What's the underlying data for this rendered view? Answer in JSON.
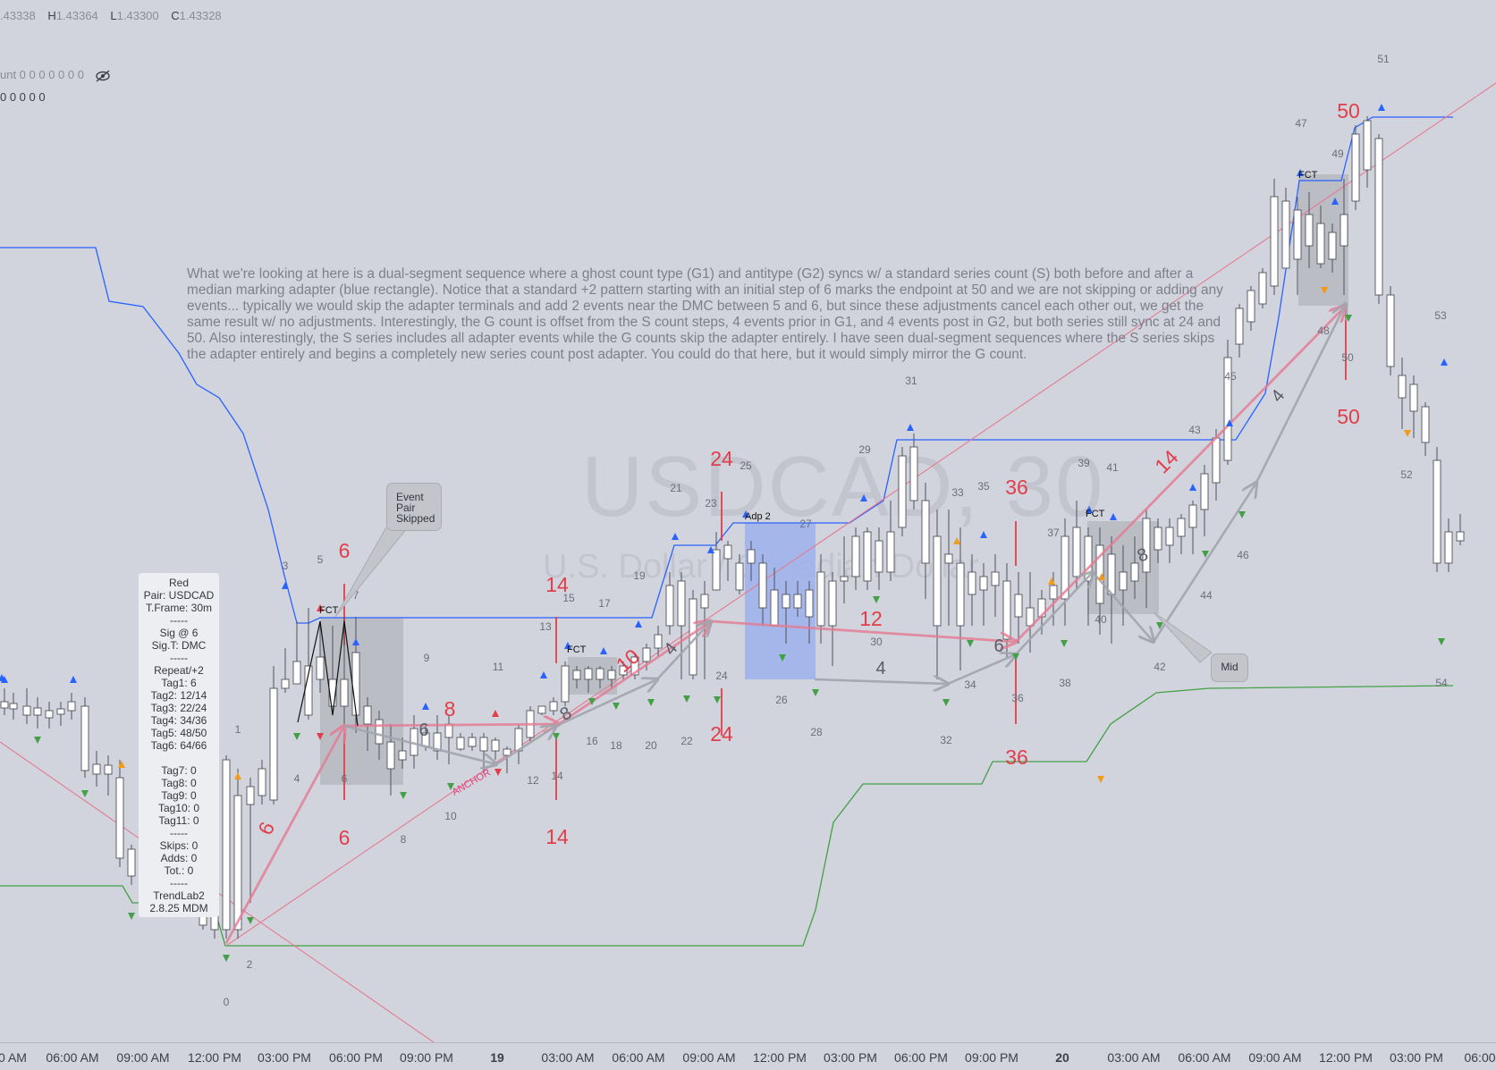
{
  "ohlc": {
    "o_value": ".43338",
    "h_label": "H",
    "h_value": "1.43364",
    "l_label": "L",
    "l_value": "1.43300",
    "c_label": "C",
    "c_value": "1.43328"
  },
  "indicator_1": {
    "label": "unt 0 0 0 0 0 0 0"
  },
  "indicator_2": {
    "label": "0 0 0 0 0"
  },
  "watermark": {
    "symbol": "USDCAD, 30",
    "name": "U.S. Dollar / Canadian Dollar"
  },
  "description": "What we're looking at here is a dual-segment sequence where a ghost count type (G1) and antitype (G2) syncs w/ a standard series count (S) both before and after a median marking adapter (blue rectangle). Notice that a standard +2 pattern starting with an initial step of 6 marks the endpoint at 50 and we are not skipping or adding any events... typically we would skip the adapter terminals and add 2 events near the DMC between 5 and 6, but since these adjustments cancel each other out, we get the same result w/ no adjustments. Interestingly, the G count is offset from the S count steps, 4 events prior in G1, and 4 events post in G2, but both series still sync at 24 and 50. Also interestingly, the S series includes all adapter events while the G counts skip the adapter entirely. I have seen dual-segment sequences where the S series skips the adapter entirely and begins a completely new series count post adapter. You could do that here, but it would simply mirror the G count.",
  "infobox": {
    "lines": [
      "Red",
      "Pair: USDCAD",
      "T.Frame: 30m",
      "-----",
      "Sig @ 6",
      "Sig.T: DMC",
      "-----",
      "Repeat/+2",
      "Tag1: 6",
      "Tag2: 12/14",
      "Tag3: 22/24",
      "Tag4: 34/36",
      "Tag5: 48/50",
      "Tag6: 64/66",
      "",
      "Tag7: 0",
      "Tag8: 0",
      "Tag9: 0",
      "Tag10: 0",
      "Tag11: 0",
      "-----",
      "Skips: 0",
      "Adds: 0",
      "Tot.: 0",
      "-----",
      "TrendLab2",
      "2.8.25 MDM"
    ]
  },
  "callouts": {
    "event_pair": [
      "Event",
      "Pair",
      "Skipped"
    ],
    "mid": "Mid"
  },
  "box_labels": {
    "fct": "FCT",
    "adp": "Adp 2",
    "anchor": "ANCHOR"
  },
  "x_axis": {
    "ticks": [
      "0 AM",
      "06:00 AM",
      "09:00 AM",
      "12:00 PM",
      "03:00 PM",
      "06:00 PM",
      "09:00 PM",
      "19",
      "03:00 AM",
      "06:00 AM",
      "09:00 AM",
      "12:00 PM",
      "03:00 PM",
      "06:00 PM",
      "09:00 PM",
      "20",
      "03:00 AM",
      "06:00 AM",
      "09:00 AM",
      "12:00 PM",
      "03:00 PM",
      "06:00"
    ]
  },
  "count_labels": {
    "values": [
      "0",
      "1",
      "2",
      "3",
      "4",
      "5",
      "6",
      "7",
      "8",
      "9",
      "10",
      "11",
      "12",
      "13",
      "14",
      "15",
      "16",
      "17",
      "18",
      "19",
      "20",
      "21",
      "22",
      "23",
      "24",
      "25",
      "26",
      "27",
      "28",
      "29",
      "30",
      "31",
      "32",
      "33",
      "34",
      "35",
      "36",
      "37",
      "38",
      "39",
      "40",
      "41",
      "42",
      "43",
      "44",
      "45",
      "46",
      "47",
      "48",
      "49",
      "50",
      "51",
      "52",
      "53",
      "54"
    ]
  },
  "red_labels": {
    "values": [
      "6",
      "6",
      "6",
      "8",
      "14",
      "14",
      "10",
      "24",
      "24",
      "12",
      "36",
      "36",
      "14",
      "50",
      "50"
    ]
  },
  "gray_labels": {
    "values": [
      "6",
      "8",
      "4",
      "4",
      "6",
      "8",
      "4"
    ]
  },
  "colors": {
    "background": "#d1d4dc",
    "blue_line": "#2962ff",
    "green_line": "#43a047",
    "red": "#e23d4a",
    "pink_line": "#e57a93",
    "gray_arrow": "#a2a5ae",
    "adapter_box": "#9db2ec",
    "box": "#b3b6be"
  },
  "chart_data": {
    "type": "candlestick",
    "symbol": "USDCAD",
    "timeframe": "30m",
    "ohlc_last": {
      "open": 1.43338,
      "high": 1.43364,
      "low": 1.433,
      "close": 1.43328
    },
    "count_events": 55,
    "sync_points": [
      24,
      50
    ],
    "adapter": "Adp 2"
  }
}
